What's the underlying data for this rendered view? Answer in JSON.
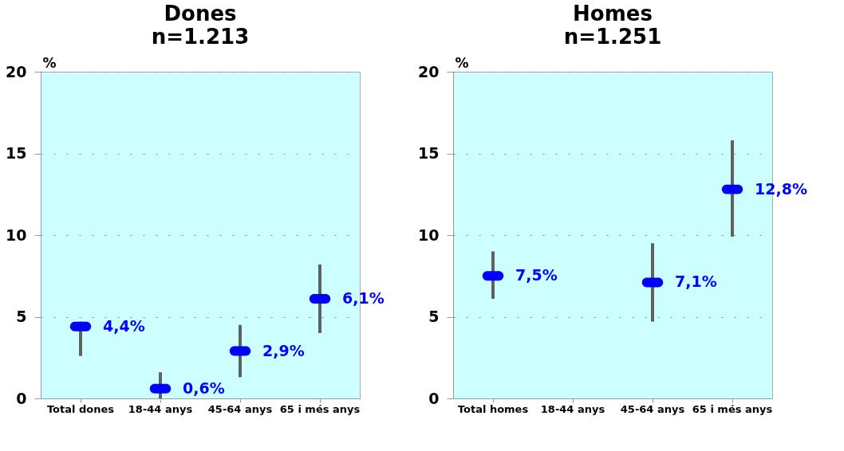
{
  "chart_data": [
    {
      "type": "scatter",
      "title": "Dones",
      "subtitle": "n=1.213",
      "ylabel": "%",
      "categories": [
        "Total dones",
        "18-44 anys",
        "45-64 anys",
        "65 i més anys"
      ],
      "ylim": [
        0,
        20
      ],
      "yticks": [
        0,
        5,
        10,
        15,
        20
      ],
      "grid": "y",
      "series": [
        {
          "color": "#0000ff",
          "values": [
            4.4,
            0.6,
            2.9,
            6.1
          ],
          "errors": [
            [
              2.6,
              4.7
            ],
            [
              0,
              1.6
            ],
            [
              1.3,
              4.5
            ],
            [
              4.0,
              8.2
            ]
          ],
          "value_labels": [
            "4,4%",
            "0,6%",
            "2,9%",
            "6,1%"
          ]
        }
      ]
    },
    {
      "type": "scatter",
      "title": "Homes",
      "subtitle": "n=1.251",
      "ylabel": "%",
      "categories": [
        "Total homes",
        "18-44 anys",
        "45-64 anys",
        "65 i més anys"
      ],
      "ylim": [
        0,
        20
      ],
      "yticks": [
        0,
        5,
        10,
        15,
        20
      ],
      "grid": "y",
      "series": [
        {
          "color": "#0000ff",
          "values": [
            7.5,
            null,
            7.1,
            12.8
          ],
          "errors": [
            [
              6.1,
              9.0
            ],
            null,
            [
              4.7,
              9.5
            ],
            [
              9.9,
              15.8
            ]
          ],
          "value_labels": [
            "7,5%",
            null,
            "7,1%",
            "12,8%"
          ]
        }
      ]
    }
  ]
}
